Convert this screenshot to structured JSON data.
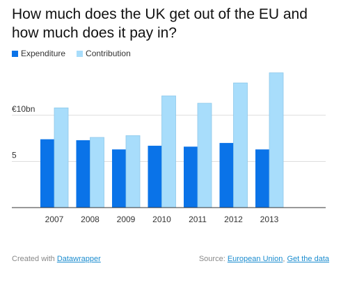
{
  "title": "How much does the UK get out of the EU and how much does it pay in?",
  "legend": [
    {
      "label": "Expenditure",
      "color": "#0a73e8"
    },
    {
      "label": "Contribution",
      "color": "#a8ddfb"
    }
  ],
  "chart_data": {
    "type": "bar",
    "categories": [
      "2007",
      "2008",
      "2009",
      "2010",
      "2011",
      "2012",
      "2013"
    ],
    "series": [
      {
        "name": "Expenditure",
        "values": [
          7.4,
          7.3,
          6.3,
          6.7,
          6.6,
          7.0,
          6.3
        ],
        "color": "#0a73e8"
      },
      {
        "name": "Contribution",
        "values": [
          10.8,
          7.6,
          7.8,
          12.1,
          11.3,
          13.5,
          14.6
        ],
        "color": "#a8ddfb"
      }
    ],
    "y_ticks": [
      {
        "value": 10,
        "label": "€10bn"
      },
      {
        "value": 5,
        "label": "5"
      }
    ],
    "ylim": [
      0,
      15
    ],
    "grid": true
  },
  "footer": {
    "created_prefix": "Created with ",
    "created_link": "Datawrapper",
    "source_prefix": "Source: ",
    "source_link": "European Union",
    "separator": ", ",
    "get_data_link": "Get the data"
  }
}
